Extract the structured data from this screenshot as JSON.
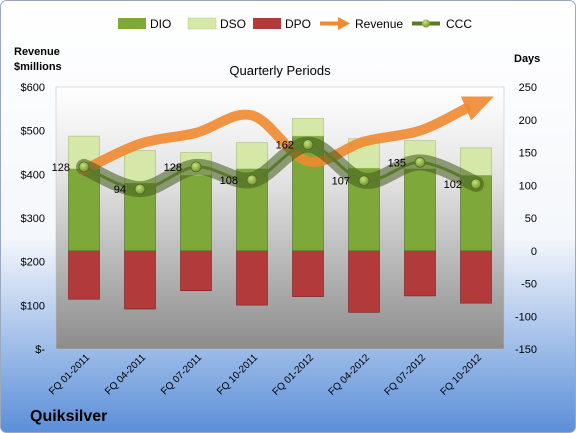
{
  "chart_data": {
    "type": "bar",
    "title": "Quarterly Periods",
    "company": "Quiksilver",
    "left_axis_title_line1": "Revenue",
    "left_axis_title_line2": "$millions",
    "right_axis_title": "Days",
    "left_ylim": [
      0,
      600
    ],
    "left_ticks": [
      "$-",
      "$100",
      "$200",
      "$300",
      "$400",
      "$500",
      "$600"
    ],
    "right_ylim": [
      -150,
      250
    ],
    "right_ticks": [
      "-150",
      "-100",
      "-50",
      "0",
      "50",
      "100",
      "150",
      "200",
      "250"
    ],
    "categories": [
      "FQ 01-2011",
      "FQ 04-2011",
      "FQ 07-2011",
      "FQ 10-2011",
      "FQ 01-2012",
      "FQ 04-2012",
      "FQ 07-2012",
      "FQ 10-2012"
    ],
    "legend": [
      "DIO",
      "DSO",
      "DPO",
      "Revenue",
      "CCC"
    ],
    "legend_position": "top",
    "grid": false,
    "series": [
      {
        "name": "DIO",
        "axis": "right",
        "color": "#7ea83a",
        "values": [
          125,
          103,
          115,
          125,
          175,
          126,
          125,
          115
        ]
      },
      {
        "name": "DSO",
        "axis": "right",
        "color": "#d6e8a8",
        "values": [
          50,
          50,
          35,
          40,
          27,
          45,
          43,
          42
        ]
      },
      {
        "name": "DPO",
        "axis": "right",
        "color": "#b33a3a",
        "values": [
          -74,
          -89,
          -61,
          -83,
          -70,
          -94,
          -69,
          -80
        ]
      },
      {
        "name": "Revenue",
        "axis": "left",
        "color": "#f08a30",
        "values": [
          410,
          470,
          495,
          535,
          430,
          475,
          500,
          560
        ]
      },
      {
        "name": "CCC",
        "axis": "right",
        "color": "#5a7a2a",
        "values": [
          128,
          94,
          128,
          108,
          162,
          107,
          135,
          102
        ]
      }
    ],
    "ccc_labels": [
      "128",
      "94",
      "128",
      "108",
      "162",
      "107",
      "135",
      "102"
    ]
  }
}
